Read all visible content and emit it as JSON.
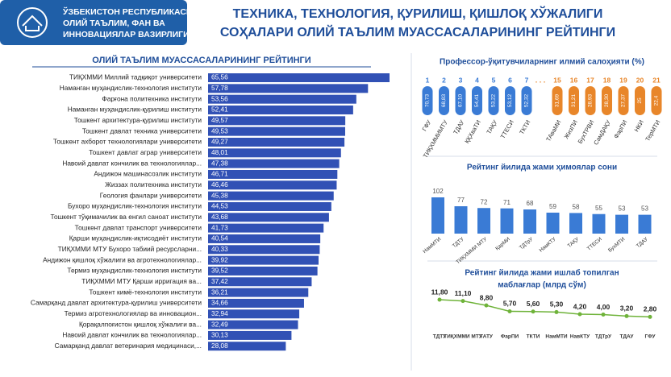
{
  "header": {
    "ministry": [
      "ЎЗБЕКИСТОН РЕСПУБЛИКАСИ",
      "ОЛИЙ ТАЪЛИМ, ФАН ВА",
      "ИННОВАЦИЯЛАР ВАЗИРЛИГИ"
    ],
    "title": [
      "ТЕХНИКА, ТЕХНОЛОГИЯ, ҚУРИЛИШ, ҚИШЛОҚ ХЎЖАЛИГИ",
      "СОҲАЛАРИ ОЛИЙ ТАЪЛИМ МУАССАСАЛАРИНИНГ РЕЙТИНГИ"
    ]
  },
  "chart_data": [
    {
      "type": "hbar",
      "title": "ОЛИЙ ТАЪЛИМ МУАССАСАЛАРИНИНГ РЕЙТИНГИ",
      "color": "#3151b5",
      "categories": [
        "ТИҚХММИ Миллий тадқиқот университети",
        "Наманган муҳандислик-технология институти",
        "Фарғона политехника институти",
        "Наманган муҳандислик-қурилиш институти",
        "Тошкент архитектура-қурилиш институти",
        "Тошкент давлат техника университети",
        "Тошкент ахборот технологиялари университети",
        "Тошкент давлат аграр университети",
        "Навоий давлат кончилик ва технологиялар...",
        "Андижон машинасозлик институти",
        "Жиззах политехника институти",
        "Геология фанлари университети",
        "Бухоро муҳандислик-технология институти",
        "Тошкент тўқимачилик ва енгил саноат институти",
        "Тошкент давлат  транспорт университети",
        "Қарши муҳандислик-иқтисодиёт институти",
        "ТИҚХММИ МТУ Бухоро табиий ресурсларни...",
        "Андижон қишлоқ хўжалиги ва агротехнологиялар...",
        "Термиз муҳандислик-технология институти",
        "ТИҚХММИ МТУ Қарши ирригация ва...",
        "Тошкент кимё-технология институти",
        "Самарқанд давлат архитектура-қурилиш университети",
        "Термиз агротехнологиялар ва инновацион...",
        "Қорақалпоғистон қишлоқ хўжалиги ва...",
        "Навоий давлат кончилик ва технологиялар...",
        "Самарқанд давлат ветеринария медицинаси,..."
      ],
      "values": [
        65.56,
        57.78,
        53.56,
        52.41,
        49.57,
        49.53,
        49.27,
        48.01,
        47.38,
        46.71,
        46.46,
        45.38,
        44.53,
        43.68,
        41.73,
        40.54,
        40.33,
        39.92,
        39.52,
        37.42,
        36.21,
        34.66,
        32.94,
        32.49,
        30.13,
        28.08
      ],
      "value_labels": [
        "65,56",
        "57,78",
        "53,56",
        "52,41",
        "49,57",
        "49,53",
        "49,27",
        "48,01",
        "47,38",
        "46,71",
        "46,46",
        "45,38",
        "44,53",
        "43,68",
        "41,73",
        "40,54",
        "40,33",
        "39,92",
        "39,52",
        "37,42",
        "36,21",
        "34,66",
        "32,94",
        "32,49",
        "30,13",
        "28,08"
      ]
    },
    {
      "type": "pill",
      "title": "Профессор-ўқитувчиларнинг илмий салоҳияти (%)",
      "separator": ". . .",
      "series": [
        {
          "name": "top",
          "color": "#3a7bd5",
          "ranks": [
            1,
            2,
            3,
            4,
            5,
            6,
            7
          ],
          "categories": [
            "ГФУ",
            "ТИҚХММИМТУ",
            "ТДАУ",
            "ҚҚХваТИ",
            "ТАҚУ",
            "ТТЕСИ",
            "ТКТИ"
          ],
          "values": [
            70.73,
            68.83,
            67.1,
            54.41,
            53.22,
            53.12,
            52.32
          ],
          "value_labels": [
            "70,73",
            "68,83",
            "67,10",
            "54,41",
            "53,22",
            "53,12",
            "52,32"
          ]
        },
        {
          "name": "bottom",
          "color": "#e8862a",
          "ranks": [
            15,
            16,
            17,
            18,
            19,
            20,
            21
          ],
          "categories": [
            "ТАваМИ",
            "ЖизПИ",
            "БухТРВИ",
            "СамДАҚУ",
            "ФарПИ",
            "НКИ",
            "ТерМТИ"
          ],
          "values": [
            31.69,
            31.21,
            28.93,
            28.3,
            27.37,
            25,
            22.4
          ],
          "value_labels": [
            "31,69",
            "31,21",
            "28,93",
            "28,30",
            "27,37",
            "25",
            "22,4"
          ]
        }
      ]
    },
    {
      "type": "vbar",
      "title": "Рейтинг йилида жами ҳимоялар сони",
      "color": "#3a7bd5",
      "categories": [
        "НамМТИ",
        "ТДТУ",
        "ТИҚХММИ МТУ",
        "ҚарМИ",
        "ТДТрУ",
        "НамКТУ",
        "ТАҚУ",
        "ТТЕСИ",
        "БухМТИ",
        "ТДАУ"
      ],
      "values": [
        102,
        77,
        72,
        71,
        68,
        59,
        58,
        55,
        53,
        53
      ]
    },
    {
      "type": "line",
      "title": [
        "Рейтинг йилида жами ишлаб топилган",
        "маблағлар (млрд сўм)"
      ],
      "color": "#6fb33a",
      "categories": [
        "ТДТУ",
        "ТИҚХММИ МТУ",
        "ТАТУ",
        "ФарПИ",
        "ТКТИ",
        "НамМТИ",
        "НавКТУ",
        "ТДТрУ",
        "ТДАУ",
        "ГФУ"
      ],
      "values": [
        11.8,
        11.1,
        8.8,
        5.7,
        5.6,
        5.3,
        4.2,
        4.0,
        3.2,
        2.8
      ],
      "value_labels": [
        "11,80",
        "11,10",
        "8,80",
        "5,70",
        "5,60",
        "5,30",
        "4,20",
        "4,00",
        "3,20",
        "2,80"
      ]
    }
  ]
}
